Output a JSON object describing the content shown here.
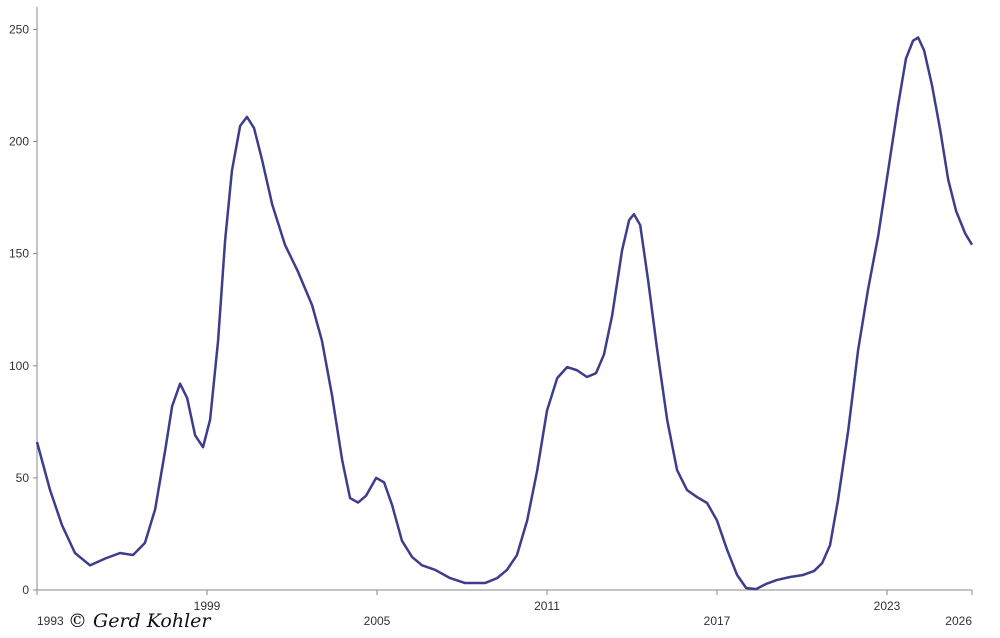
{
  "chart_data": {
    "type": "line",
    "annotation": "© Gerd Kohler",
    "xlim": [
      1993,
      2026
    ],
    "xticks": [
      1993,
      1999,
      2005,
      2011,
      2017,
      2023,
      2026
    ],
    "ylim": [
      0,
      260
    ],
    "yticks": [
      0,
      50,
      100,
      150,
      200,
      250
    ],
    "grid": false,
    "series": [
      {
        "color": "#3d3d8c",
        "x": [
          1993.0,
          1993.46,
          1993.88,
          1994.34,
          1994.87,
          1995.4,
          1995.93,
          1996.39,
          1996.81,
          1997.17,
          1997.52,
          1997.77,
          1998.05,
          1998.3,
          1998.58,
          1998.86,
          1999.11,
          1999.39,
          1999.64,
          1999.88,
          2000.17,
          2000.41,
          2000.66,
          2000.94,
          2001.3,
          2001.75,
          2002.21,
          2002.71,
          2003.06,
          2003.41,
          2003.77,
          2004.05,
          2004.33,
          2004.61,
          2004.97,
          2005.25,
          2005.53,
          2005.88,
          2006.24,
          2006.59,
          2007.05,
          2007.58,
          2008.11,
          2008.81,
          2009.24,
          2009.59,
          2009.94,
          2010.3,
          2010.65,
          2011.0,
          2011.36,
          2011.71,
          2012.06,
          2012.41,
          2012.73,
          2013.01,
          2013.3,
          2013.65,
          2013.9,
          2014.07,
          2014.29,
          2014.57,
          2014.89,
          2015.24,
          2015.59,
          2015.94,
          2016.3,
          2016.65,
          2017.0,
          2017.36,
          2017.71,
          2018.03,
          2018.38,
          2018.73,
          2019.12,
          2019.58,
          2020.04,
          2020.43,
          2020.71,
          2020.99,
          2021.27,
          2021.63,
          2021.98,
          2022.33,
          2022.69,
          2023.04,
          2023.39,
          2023.67,
          2023.92,
          2024.1,
          2024.31,
          2024.59,
          2024.88,
          2025.16,
          2025.44,
          2025.76,
          2026.0
        ],
        "values": [
          66,
          44.6,
          29,
          16.5,
          11,
          14,
          16.5,
          15.6,
          21,
          36,
          62,
          82,
          92,
          85.6,
          69,
          63.7,
          76,
          111,
          156,
          187,
          207,
          211,
          206,
          192,
          172,
          154,
          142,
          127,
          111,
          87,
          58,
          41,
          39,
          42,
          50,
          48,
          38,
          22,
          14.7,
          11,
          9,
          5.3,
          3.1,
          3.1,
          5.3,
          9,
          15.6,
          31,
          53,
          80,
          94.5,
          99.4,
          98,
          95,
          96.7,
          105,
          122.5,
          151.5,
          165,
          167.6,
          162.7,
          138,
          107,
          76,
          53.5,
          44.6,
          41.4,
          38.8,
          31,
          17.8,
          6.7,
          0.9,
          0.4,
          2.7,
          4.5,
          5.8,
          6.7,
          8.5,
          12,
          20,
          40,
          71,
          107,
          134,
          158,
          187,
          216,
          237,
          245,
          246.4,
          240.6,
          225,
          205,
          183,
          169,
          159,
          154
        ]
      }
    ]
  }
}
